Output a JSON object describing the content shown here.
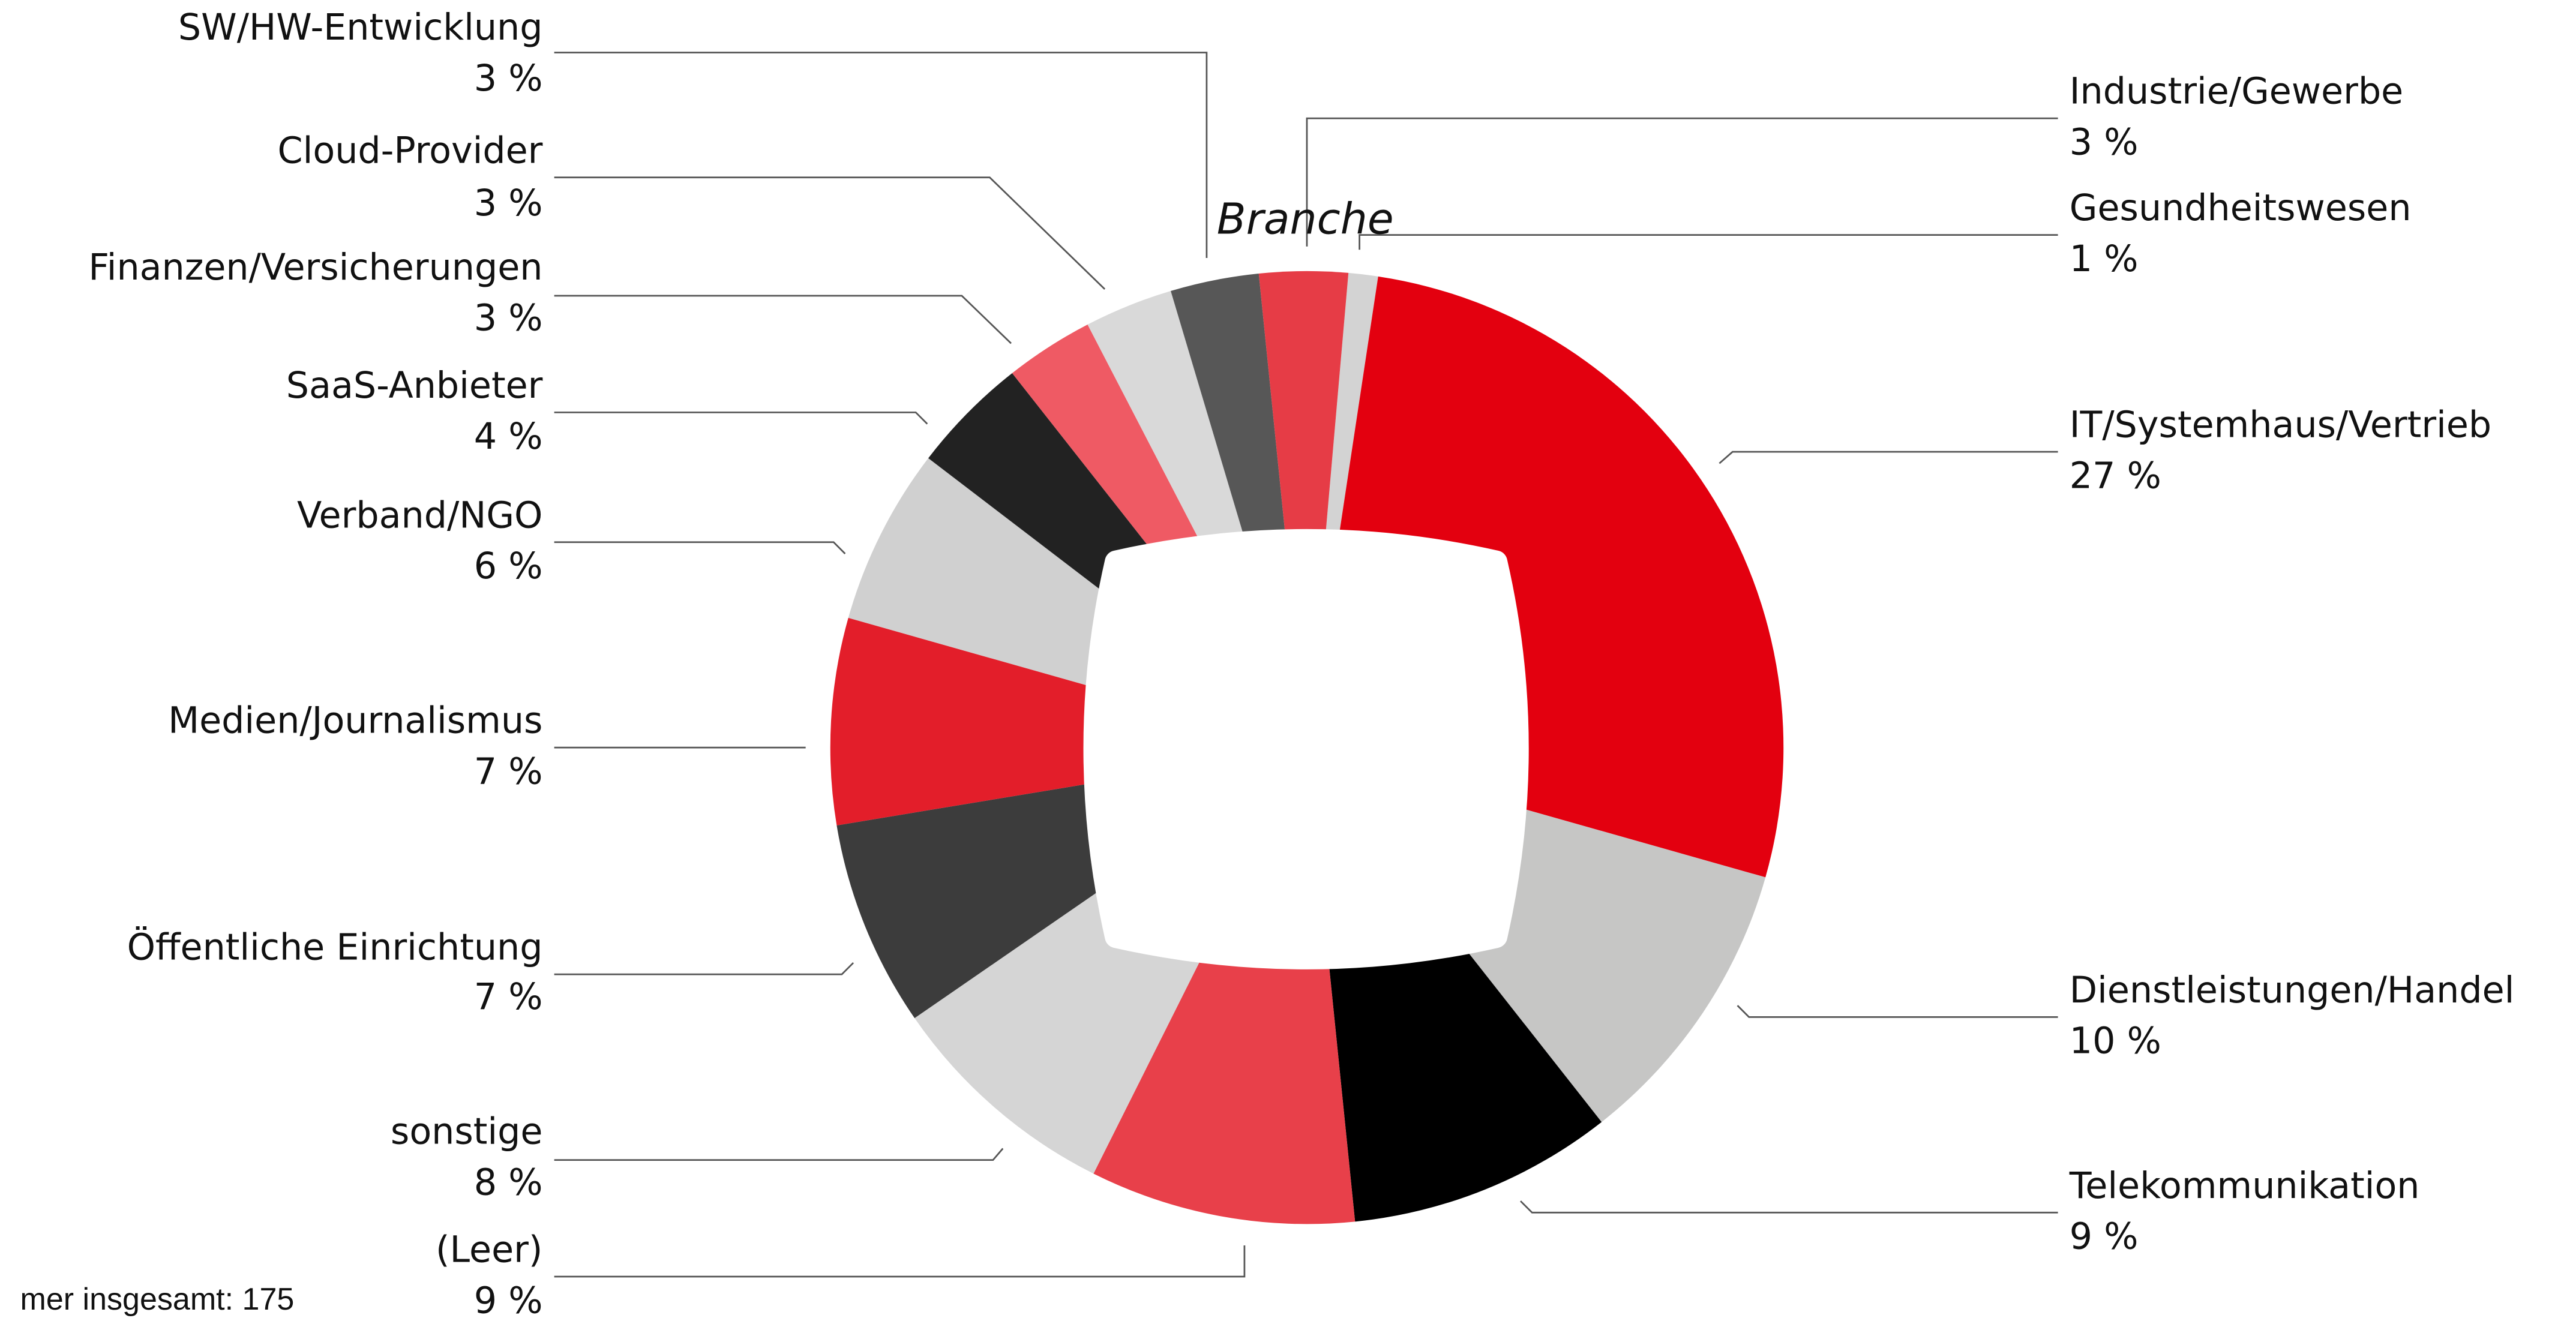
{
  "chart_data": {
    "type": "pie",
    "title": "Branche",
    "footnote": "mer insgesamt: 175",
    "categories": [
      "Gesundheitswesen",
      "IT/Systemhaus/Vertrieb",
      "Dienstleistungen/Handel",
      "Telekommunikation",
      "(Leer)",
      "sonstige",
      "Öffentliche Einrichtung",
      "Medien/Journalismus",
      "Verband/NGO",
      "SaaS-Anbieter",
      "Finanzen/Versicherungen",
      "Cloud-Provider",
      "SW/HW-Entwicklung",
      "Industrie/Gewerbe"
    ],
    "values": [
      1,
      27,
      10,
      9,
      9,
      8,
      7,
      7,
      6,
      4,
      3,
      3,
      3,
      3
    ],
    "value_labels": [
      "1 %",
      "27 %",
      "10 %",
      "9 %",
      "9 %",
      "8 %",
      "7 %",
      "7 %",
      "6 %",
      "4 %",
      "3 %",
      "3 %",
      "3 %",
      "3 %"
    ],
    "colors": [
      "#d3d3d3",
      "#e3000f",
      "#c6c6c5",
      "#000000",
      "#e8404a",
      "#d5d5d5",
      "#3c3c3c",
      "#e31e2a",
      "#d0d0d0",
      "#222222",
      "#ef5a64",
      "#d9d9d9",
      "#575757",
      "#e63c46"
    ]
  }
}
